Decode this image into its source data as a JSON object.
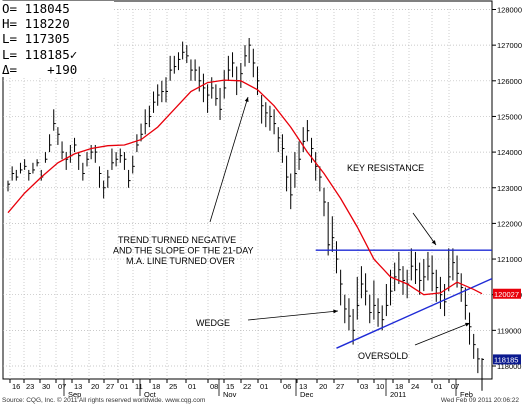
{
  "readout": {
    "rows": [
      "O= 118045",
      "H= 118220",
      "L= 117305",
      "L= 118185✓",
      "Δ=    +190"
    ]
  },
  "colors": {
    "price_bars": "#000000",
    "moving_average": "#e8000b",
    "trendlines": "#1f2bd6",
    "grid": "#b8b8b8",
    "ma_tag": "#e8000b",
    "last_tag": "#0b1a8f"
  },
  "chart_data": {
    "type": "ohlc",
    "y_axis": {
      "position": "right",
      "range": [
        117400,
        128500
      ],
      "ticks": [
        128000,
        127000,
        126000,
        125000,
        124000,
        123000,
        122000,
        121000,
        120000,
        119000,
        118000
      ],
      "tick_labels": [
        "128000",
        "127000",
        "126000",
        "125000",
        "124000",
        "123000",
        "122000",
        "121000",
        "120000",
        "119000",
        "118000"
      ]
    },
    "x_axis": {
      "day_ticks": [
        "16",
        "23",
        "30",
        "07",
        "13",
        "20",
        "27",
        "01",
        "11",
        "18",
        "25",
        "01",
        "08",
        "15",
        "22",
        "01",
        "06",
        "13",
        "20",
        "27",
        "03",
        "10",
        "18",
        "24",
        "01",
        "07"
      ],
      "month_labels": [
        "Sep",
        "Oct",
        "Nov",
        "Dec",
        "2011",
        "Feb"
      ]
    },
    "price_bars": [
      [
        0,
        123100,
        122900,
        123200
      ],
      [
        1,
        123400,
        123200,
        123600
      ],
      [
        2,
        123300,
        123200,
        123500
      ],
      [
        3,
        123500,
        123400,
        123700
      ],
      [
        4,
        123600,
        123500,
        123800
      ],
      [
        5,
        123400,
        123200,
        123500
      ],
      [
        6,
        123500,
        123400,
        123700
      ],
      [
        7,
        123700,
        123600,
        123800
      ],
      [
        8,
        123300,
        123200,
        123500
      ],
      [
        9,
        123800,
        123700,
        124000
      ],
      [
        10,
        124200,
        124000,
        124500
      ],
      [
        11,
        124800,
        124600,
        125200
      ],
      [
        12,
        124500,
        124200,
        124700
      ],
      [
        13,
        124000,
        123800,
        124300
      ],
      [
        14,
        123800,
        123500,
        124000
      ],
      [
        15,
        123900,
        123700,
        124200
      ],
      [
        16,
        124200,
        124000,
        124400
      ],
      [
        17,
        123900,
        123500,
        124000
      ],
      [
        18,
        123400,
        123200,
        123700
      ],
      [
        19,
        123800,
        123600,
        124000
      ],
      [
        20,
        124000,
        123800,
        124200
      ],
      [
        21,
        124000,
        123700,
        124200
      ],
      [
        22,
        123400,
        123000,
        123600
      ],
      [
        23,
        123000,
        122700,
        123200
      ],
      [
        24,
        123300,
        123000,
        123500
      ],
      [
        25,
        123700,
        123500,
        124100
      ],
      [
        26,
        123800,
        123600,
        124000
      ],
      [
        27,
        123900,
        123700,
        124100
      ],
      [
        28,
        123800,
        123500,
        124000
      ],
      [
        29,
        123200,
        123000,
        123500
      ],
      [
        30,
        123600,
        123400,
        123900
      ],
      [
        31,
        124200,
        124000,
        124500
      ],
      [
        32,
        124500,
        124300,
        124800
      ],
      [
        33,
        124800,
        124500,
        125200
      ],
      [
        34,
        125000,
        124700,
        125300
      ],
      [
        35,
        125400,
        125100,
        125700
      ],
      [
        36,
        125600,
        125300,
        125900
      ],
      [
        37,
        125700,
        125400,
        126000
      ],
      [
        38,
        125700,
        125400,
        126100
      ],
      [
        39,
        126300,
        126000,
        126700
      ],
      [
        40,
        126400,
        126200,
        126700
      ],
      [
        41,
        126600,
        126300,
        126800
      ],
      [
        42,
        126800,
        126600,
        127100
      ],
      [
        43,
        126700,
        126500,
        127000
      ],
      [
        44,
        126300,
        126000,
        126600
      ],
      [
        45,
        126300,
        126000,
        126600
      ],
      [
        46,
        126000,
        125700,
        126400
      ],
      [
        47,
        125800,
        125400,
        126200
      ],
      [
        48,
        125600,
        125100,
        125900
      ],
      [
        49,
        125800,
        125500,
        126100
      ],
      [
        50,
        125500,
        125300,
        125900
      ],
      [
        51,
        125200,
        124900,
        125800
      ],
      [
        52,
        125800,
        125500,
        126300
      ],
      [
        53,
        126300,
        126000,
        126700
      ],
      [
        54,
        126500,
        126100,
        126800
      ],
      [
        55,
        126000,
        125600,
        126400
      ],
      [
        56,
        126200,
        125800,
        126500
      ],
      [
        57,
        126700,
        126400,
        127000
      ],
      [
        58,
        127000,
        126500,
        127200
      ],
      [
        59,
        126500,
        126100,
        126900
      ],
      [
        60,
        126000,
        125600,
        126400
      ],
      [
        61,
        125300,
        124800,
        125600
      ],
      [
        62,
        125100,
        124700,
        125400
      ],
      [
        63,
        125000,
        124600,
        125300
      ],
      [
        64,
        124800,
        124500,
        125200
      ],
      [
        65,
        124400,
        124000,
        124700
      ],
      [
        66,
        124100,
        123700,
        124500
      ],
      [
        67,
        123300,
        122900,
        123900
      ],
      [
        68,
        122800,
        122400,
        123400
      ],
      [
        69,
        123400,
        123000,
        124000
      ],
      [
        70,
        123800,
        123500,
        124300
      ],
      [
        71,
        124300,
        124000,
        124700
      ],
      [
        72,
        124600,
        124300,
        124900
      ],
      [
        73,
        124100,
        123700,
        124400
      ],
      [
        74,
        123600,
        123200,
        124000
      ],
      [
        75,
        123300,
        122900,
        123600
      ],
      [
        76,
        122600,
        122200,
        123000
      ],
      [
        77,
        121400,
        121100,
        122600
      ],
      [
        78,
        121600,
        121200,
        122200
      ],
      [
        79,
        121000,
        120600,
        121500
      ],
      [
        80,
        120300,
        119700,
        120700
      ],
      [
        81,
        119600,
        119200,
        120000
      ],
      [
        82,
        119400,
        119000,
        119900
      ],
      [
        83,
        119000,
        118600,
        119600
      ],
      [
        84,
        119700,
        119300,
        120500
      ],
      [
        85,
        120300,
        119900,
        120800
      ],
      [
        86,
        120100,
        119700,
        120600
      ],
      [
        87,
        119500,
        119200,
        120000
      ],
      [
        88,
        119700,
        119300,
        120400
      ],
      [
        89,
        119500,
        119100,
        119900
      ],
      [
        90,
        119300,
        119000,
        119700
      ],
      [
        91,
        119700,
        119400,
        120300
      ],
      [
        92,
        120100,
        119700,
        120700
      ],
      [
        93,
        120500,
        120100,
        120900
      ],
      [
        94,
        120700,
        120300,
        121200
      ],
      [
        95,
        120400,
        120000,
        120800
      ],
      [
        96,
        120300,
        119900,
        120700
      ],
      [
        97,
        120800,
        120400,
        121300
      ],
      [
        98,
        120700,
        120300,
        121200
      ],
      [
        99,
        120400,
        120000,
        120900
      ],
      [
        100,
        120500,
        120100,
        121000
      ],
      [
        101,
        120800,
        120400,
        121200
      ],
      [
        102,
        120600,
        120100,
        121100
      ],
      [
        103,
        120200,
        119800,
        120700
      ],
      [
        104,
        120000,
        119600,
        120500
      ],
      [
        105,
        119800,
        119400,
        120300
      ],
      [
        106,
        120500,
        120100,
        121300
      ],
      [
        107,
        120900,
        120400,
        121300
      ],
      [
        108,
        120600,
        120200,
        121100
      ],
      [
        109,
        120200,
        119800,
        120600
      ],
      [
        110,
        119700,
        119300,
        120200
      ],
      [
        111,
        119100,
        118600,
        119500
      ],
      [
        112,
        118600,
        118200,
        118900
      ],
      [
        113,
        118200,
        117800,
        118500
      ],
      [
        114,
        118185,
        117305,
        118220
      ]
    ],
    "moving_average": [
      [
        0,
        122300
      ],
      [
        4,
        122850
      ],
      [
        8,
        123300
      ],
      [
        12,
        123700
      ],
      [
        16,
        123950
      ],
      [
        20,
        124100
      ],
      [
        24,
        124180
      ],
      [
        28,
        124200
      ],
      [
        32,
        124350
      ],
      [
        36,
        124700
      ],
      [
        40,
        125200
      ],
      [
        44,
        125700
      ],
      [
        48,
        125950
      ],
      [
        52,
        126020
      ],
      [
        56,
        126000
      ],
      [
        60,
        125750
      ],
      [
        64,
        125300
      ],
      [
        68,
        124700
      ],
      [
        72,
        124000
      ],
      [
        76,
        123400
      ],
      [
        80,
        122700
      ],
      [
        84,
        121900
      ],
      [
        88,
        121000
      ],
      [
        92,
        120500
      ],
      [
        96,
        120300
      ],
      [
        100,
        120000
      ],
      [
        104,
        120050
      ],
      [
        108,
        120350
      ],
      [
        112,
        120150
      ],
      [
        114,
        120027
      ]
    ],
    "trendlines": [
      {
        "name": "key resistance",
        "start": [
          74,
          121250
        ],
        "end": [
          114,
          121250
        ]
      },
      {
        "name": "wedge upper",
        "start": [
          79,
          118500
        ],
        "end": [
          114,
          120450
        ]
      }
    ],
    "axis_tags": [
      {
        "name": "ma",
        "value": 120027,
        "label": "120027"
      },
      {
        "name": "last",
        "value": 118185,
        "label": "118185"
      }
    ],
    "annotations": [
      {
        "lines": [
          "TREND TURNED NEGATIVE",
          "AND THE SLOPE OF THE 21-DAY",
          "M.A. LINE TURNED OVER"
        ]
      },
      {
        "lines": [
          "KEY RESISTANCE"
        ]
      },
      {
        "lines": [
          "WEDGE"
        ]
      },
      {
        "lines": [
          "OVERSOLD"
        ]
      }
    ],
    "footer_left": "Source: CQG, Inc. © 2011 All rights reserved worldwide. www.cqg.com",
    "footer_right": "Wed Feb 09 2011 20:06:22"
  }
}
